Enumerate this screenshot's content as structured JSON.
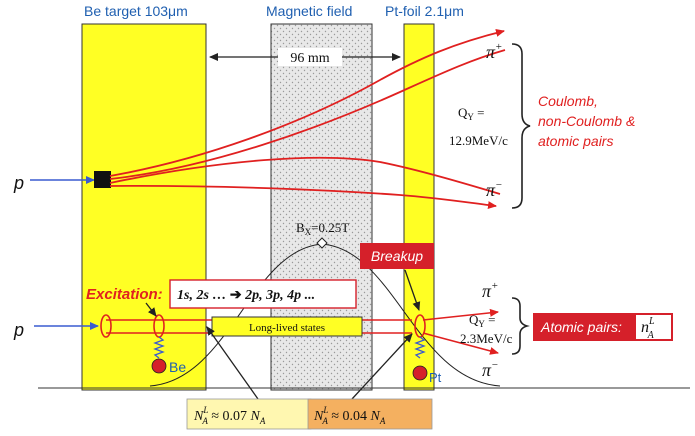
{
  "header": {
    "be_target": "Be target 103μm",
    "magnetic_field": "Magnetic field",
    "pt_foil": "Pt-foil 2.1μm"
  },
  "distance_label": "96 mm",
  "upper": {
    "proton": "p",
    "pi_plus": "π",
    "pi_plus_sup": "+",
    "pi_minus": "π",
    "pi_minus_sup": "−",
    "q_label": "Q",
    "q_sub": "Y",
    "q_eq": " =",
    "q_value": "12.9MeV/c",
    "pairs_label": [
      "Coulomb,",
      "non-Coulomb &",
      "atomic pairs"
    ]
  },
  "field": {
    "b_label": "B",
    "b_sub": "X",
    "b_value": "=0.25T"
  },
  "lower": {
    "proton": "p",
    "breakup": "Breakup",
    "excitation_label": "Excitation:",
    "excitation_from": "1s, 2s …",
    "excitation_arrow": "➔",
    "excitation_to": "2p, 3p, 4p ...",
    "long_lived": "Long-lived states",
    "be_label": "Be",
    "pt_label": "Pt",
    "pi_plus": "π",
    "pi_plus_sup": "+",
    "pi_minus": "π",
    "pi_minus_sup": "−",
    "q_label": "Q",
    "q_sub": "Y",
    "q_eq": " =",
    "q_value": "2.3MeV/c",
    "atomic_pairs": "Atomic pairs:",
    "n_symbol": "n",
    "n_sup": "L",
    "n_sub": "A"
  },
  "bottom_boxes": {
    "left": {
      "n": "N",
      "sup": "L",
      "sub": "A",
      "approx": " ≈ 0.07 ",
      "n2": "N",
      "sub2": "A"
    },
    "right": {
      "n": "N",
      "sup": "L",
      "sub": "A",
      "approx": " ≈ 0.04 ",
      "n2": "N",
      "sub2": "A"
    }
  },
  "colors": {
    "target_yellow": "#ffff24",
    "red": "#e02020",
    "blue_arrow": "#3a5bd0",
    "header_blue": "#1f5fb0",
    "box_red": "#d5202a",
    "box_yellow": "#fff7b0",
    "box_orange": "#f4b060",
    "dot_panel": "#e6e6e6"
  }
}
